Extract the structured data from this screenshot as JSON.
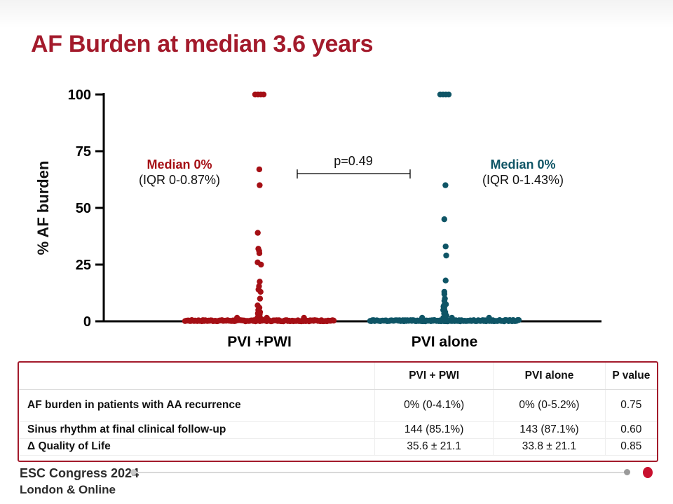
{
  "slide": {
    "title": "AF Burden at median 3.6 years"
  },
  "chart_data": {
    "type": "scatter",
    "title": "",
    "ylabel": "% AF burden",
    "xlabel": "",
    "ylim": [
      0,
      100
    ],
    "yticks": [
      "0",
      "25",
      "50",
      "75",
      "100"
    ],
    "categories": [
      "PVI +PWI",
      "PVI alone"
    ],
    "colors": {
      "PVI +PWI": "#a50f15",
      "PVI alone": "#0f5566"
    },
    "series": [
      {
        "name": "PVI +PWI",
        "values": [
          100,
          100,
          100,
          100,
          67,
          60,
          39,
          32,
          31,
          30,
          26,
          25,
          17.5,
          15.5,
          14,
          13,
          10,
          7,
          6,
          5,
          4,
          3.5,
          3,
          2,
          2,
          1.5,
          1,
          1,
          1,
          0.5,
          0.5,
          0,
          0,
          0,
          0,
          0,
          0,
          0,
          0,
          0,
          0,
          0,
          0,
          0,
          0,
          0,
          0,
          0,
          0,
          0,
          0,
          0,
          0,
          0,
          0,
          0,
          0,
          0,
          0,
          0,
          0,
          0,
          0,
          0,
          0,
          0,
          0,
          0,
          0,
          0,
          0,
          0,
          0,
          0,
          0,
          0,
          0,
          0,
          0,
          0,
          0,
          0,
          0,
          0,
          0,
          0,
          0,
          0,
          0,
          0,
          0,
          0,
          0,
          0,
          0,
          0,
          0,
          0,
          0,
          0,
          0,
          0,
          0,
          0,
          0,
          0,
          0,
          0,
          0,
          0,
          0,
          0,
          0,
          0,
          0,
          0,
          0,
          0,
          0,
          0,
          0,
          0,
          0,
          0,
          0,
          0,
          0,
          0,
          0,
          0,
          0,
          0,
          0,
          0,
          0,
          0,
          0,
          0,
          0,
          0,
          0,
          0,
          0,
          0,
          0,
          0,
          0,
          0,
          0,
          0,
          0,
          0,
          0,
          0,
          0,
          0,
          0,
          0,
          0,
          0,
          0,
          0,
          0,
          0,
          0
        ]
      },
      {
        "name": "PVI alone",
        "values": [
          100,
          100,
          100,
          100,
          60,
          45,
          33,
          29,
          18,
          13,
          12,
          10,
          9,
          7.5,
          7,
          6.5,
          6,
          5,
          5,
          4,
          3.5,
          3,
          2.5,
          2,
          1.5,
          1,
          1,
          1,
          0.5,
          0.5,
          0.5,
          0,
          0,
          0,
          0,
          0,
          0,
          0,
          0,
          0,
          0,
          0,
          0,
          0,
          0,
          0,
          0,
          0,
          0,
          0,
          0,
          0,
          0,
          0,
          0,
          0,
          0,
          0,
          0,
          0,
          0,
          0,
          0,
          0,
          0,
          0,
          0,
          0,
          0,
          0,
          0,
          0,
          0,
          0,
          0,
          0,
          0,
          0,
          0,
          0,
          0,
          0,
          0,
          0,
          0,
          0,
          0,
          0,
          0,
          0,
          0,
          0,
          0,
          0,
          0,
          0,
          0,
          0,
          0,
          0,
          0,
          0,
          0,
          0,
          0,
          0,
          0,
          0,
          0,
          0,
          0,
          0,
          0,
          0,
          0,
          0,
          0,
          0,
          0,
          0,
          0,
          0,
          0,
          0,
          0,
          0,
          0,
          0,
          0,
          0,
          0,
          0,
          0,
          0,
          0,
          0,
          0,
          0,
          0,
          0,
          0,
          0,
          0,
          0,
          0,
          0,
          0,
          0,
          0,
          0,
          0,
          0,
          0,
          0,
          0,
          0,
          0,
          0,
          0,
          0,
          0,
          0,
          0,
          0
        ]
      }
    ],
    "annotations": {
      "left_median": "Median 0%",
      "left_iqr": "(IQR 0-0.87%)",
      "right_median": "Median 0%",
      "right_iqr": "(IQR 0-1.43%)",
      "pvalue": "p=0.49"
    }
  },
  "table": {
    "headers": [
      "",
      "PVI + PWI",
      "PVI alone",
      "P value"
    ],
    "rows": [
      [
        "AF burden in patients with AA recurrence",
        "0% (0-4.1%)",
        "0% (0-5.2%)",
        "0.75"
      ],
      [
        "Sinus rhythm at final clinical follow-up",
        "144 (85.1%)",
        "143 (87.1%)",
        "0.60"
      ],
      [
        "Δ Quality of Life",
        "35.6 ± 21.1",
        "33.8 ± 21.1",
        "0.85"
      ]
    ]
  },
  "footer": {
    "line1": "ESC Congress 2024",
    "line2": "London & Online"
  }
}
